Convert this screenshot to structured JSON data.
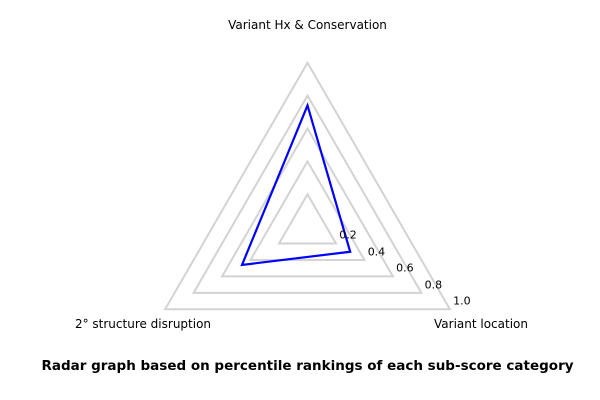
{
  "chart_data": {
    "type": "radar",
    "categories": [
      "Variant Hx & Conservation",
      "Variant location",
      "2° structure disruption"
    ],
    "values": [
      0.74,
      0.3,
      0.46
    ],
    "series": [
      {
        "name": "percentile",
        "values": [
          0.74,
          0.3,
          0.46
        ]
      }
    ],
    "axis_angles_deg": [
      90,
      -30,
      210
    ],
    "radial_ticks": [
      0.2,
      0.4,
      0.6,
      0.8,
      1.0
    ],
    "radial_tick_labels": [
      "0.2",
      "0.4",
      "0.6",
      "0.8",
      "1.0"
    ],
    "rlim": [
      0,
      1.0
    ],
    "grid": true,
    "legend": "none",
    "title": "Radar graph based on percentile rankings of each sub-score category",
    "line_color": "#0000ff",
    "grid_color": "#d3d3d3",
    "text_color": "#000000"
  }
}
